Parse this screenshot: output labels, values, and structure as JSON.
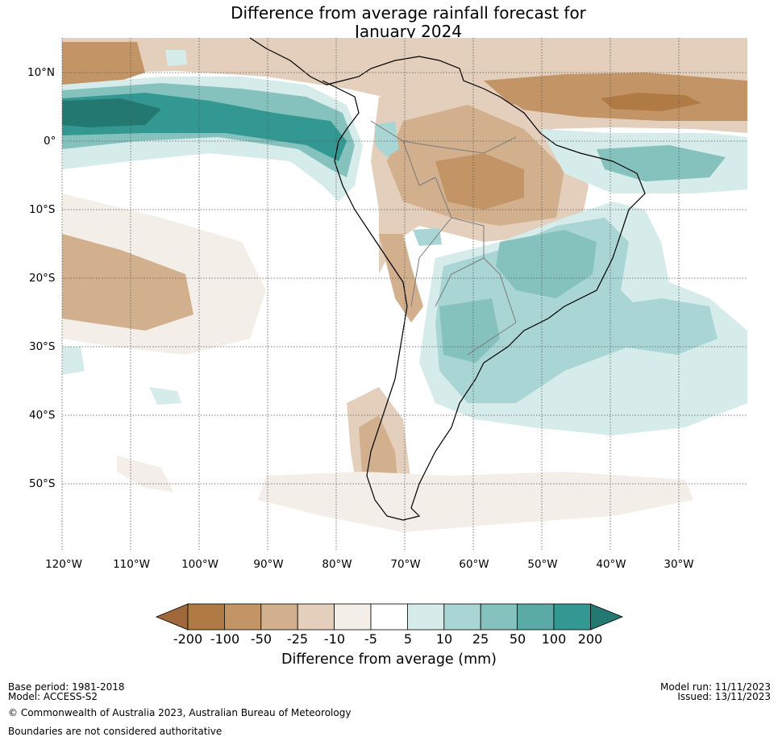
{
  "title": {
    "line1": "Difference from average rainfall forecast for",
    "line2": "January 2024"
  },
  "map": {
    "lat_labels": [
      "10°N",
      "0°",
      "10°S",
      "20°S",
      "30°S",
      "40°S",
      "50°S"
    ],
    "lon_labels": [
      "120°W",
      "110°W",
      "100°W",
      "90°W",
      "80°W",
      "70°W",
      "60°W",
      "50°W",
      "40°W",
      "30°W"
    ],
    "lat_values": [
      10,
      0,
      -10,
      -20,
      -30,
      -40,
      -50
    ],
    "lon_values": [
      -120,
      -110,
      -100,
      -90,
      -80,
      -70,
      -60,
      -50,
      -40,
      -30
    ],
    "extent": {
      "lon": [
        -120,
        -20
      ],
      "lat": [
        -60,
        15
      ]
    }
  },
  "colorbar": {
    "ticks": [
      "-200",
      "-100",
      "-50",
      "-25",
      "-10",
      "-5",
      "5",
      "10",
      "25",
      "50",
      "100",
      "200"
    ],
    "colors": [
      "#a0683a",
      "#b07a44",
      "#c39466",
      "#d2b08e",
      "#e3cfbc",
      "#f3eee8",
      "#ffffff",
      "#d6ecea",
      "#a9d6d4",
      "#85c2be",
      "#5aaba6",
      "#339891",
      "#247872"
    ],
    "label": "Difference from average (mm)"
  },
  "footer": {
    "base_period": "Base period: 1981-2018",
    "model": "Model: ACCESS-S2",
    "copyright": "© Commonwealth of Australia 2023, Australian Bureau of Meteorology",
    "boundaries": "Boundaries are not considered authoritative",
    "model_run": "Model run: 11/11/2023",
    "issued": "Issued: 13/11/2023"
  }
}
